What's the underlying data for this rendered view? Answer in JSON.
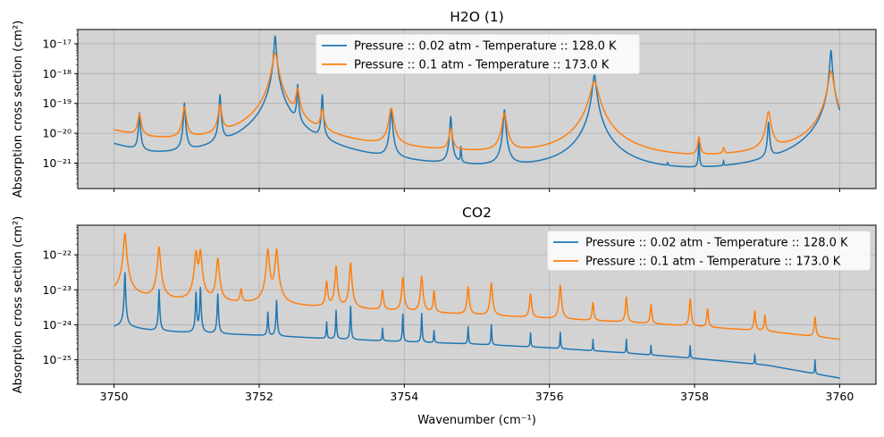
{
  "colors": {
    "series1": "#1f77b4",
    "series2": "#ff7f0e",
    "axes_bg": "#d3d3d3",
    "grid": "#b0b0b0"
  },
  "chart_data": [
    {
      "type": "line",
      "title": "H2O (1)",
      "ylabel": "Absorption cross section (cm²)",
      "xlabel": "",
      "yscale": "log",
      "xlim": [
        3749.5,
        3760.5
      ],
      "ylim": [
        1.4e-22,
        3e-17
      ],
      "grid": true,
      "legend_position": "top-center",
      "x_ticks": [
        3750,
        3752,
        3754,
        3756,
        3758,
        3760
      ],
      "y_ticks": [
        {
          "value": 1e-17,
          "label": "10⁻¹⁷"
        },
        {
          "value": 1e-18,
          "label": "10⁻¹⁸"
        },
        {
          "value": 1e-19,
          "label": "10⁻¹⁹"
        },
        {
          "value": 1e-20,
          "label": "10⁻²⁰"
        },
        {
          "value": 1e-21,
          "label": "10⁻²¹"
        }
      ],
      "series": [
        {
          "name": "Pressure :: 0.02 atm - Temperature :: 128.0 K",
          "x_range": [
            3750,
            3760
          ],
          "baseline": [
            [
              3750,
              4e-21
            ],
            [
              3750.5,
              1.5e-21
            ],
            [
              3751,
              9e-22
            ],
            [
              3752,
              8e-22
            ],
            [
              3753,
              6e-22
            ],
            [
              3754,
              4.5e-22
            ],
            [
              3755,
              3.5e-22
            ],
            [
              3756,
              3e-22
            ],
            [
              3757,
              2.4e-22
            ],
            [
              3758,
              2.2e-22
            ],
            [
              3759,
              3e-22
            ],
            [
              3760,
              5e-22
            ]
          ],
          "peaks": [
            {
              "x": 3750.35,
              "y": 4.5e-20,
              "w": 0.009
            },
            {
              "x": 3750.97,
              "y": 1e-19,
              "w": 0.009
            },
            {
              "x": 3751.46,
              "y": 1.9e-19,
              "w": 0.009
            },
            {
              "x": 3752.22,
              "y": 1.8e-17,
              "w": 0.012
            },
            {
              "x": 3752.53,
              "y": 4e-19,
              "w": 0.008
            },
            {
              "x": 3752.87,
              "y": 1.9e-19,
              "w": 0.008
            },
            {
              "x": 3753.82,
              "y": 6e-20,
              "w": 0.012
            },
            {
              "x": 3754.64,
              "y": 3.5e-20,
              "w": 0.01
            },
            {
              "x": 3754.78,
              "y": 2.5e-21,
              "w": 0.006
            },
            {
              "x": 3755.38,
              "y": 6e-20,
              "w": 0.012
            },
            {
              "x": 3756.62,
              "y": 9e-19,
              "w": 0.02
            },
            {
              "x": 3757.63,
              "y": 2.2e-22,
              "w": 0.004
            },
            {
              "x": 3758.06,
              "y": 4.5e-21,
              "w": 0.006
            },
            {
              "x": 3758.4,
              "y": 4e-22,
              "w": 0.004
            },
            {
              "x": 3759.02,
              "y": 2.2e-20,
              "w": 0.01
            },
            {
              "x": 3759.88,
              "y": 6e-18,
              "w": 0.012
            }
          ]
        },
        {
          "name": "Pressure :: 0.1 atm - Temperature :: 173.0 K",
          "x_range": [
            3750,
            3760
          ],
          "baseline": [
            [
              3750,
              1.2e-20
            ],
            [
              3750.5,
              6e-21
            ],
            [
              3751,
              4e-21
            ],
            [
              3752,
              3.5e-21
            ],
            [
              3753,
              2.6e-21
            ],
            [
              3754,
              2e-21
            ],
            [
              3755,
              1.5e-21
            ],
            [
              3756,
              1.2e-21
            ],
            [
              3757,
              9e-22
            ],
            [
              3758,
              9e-22
            ],
            [
              3759,
              1.4e-21
            ],
            [
              3760,
              2.5e-21
            ]
          ],
          "peaks": [
            {
              "x": 3750.35,
              "y": 3.5e-20,
              "w": 0.02
            },
            {
              "x": 3750.97,
              "y": 7e-20,
              "w": 0.02
            },
            {
              "x": 3751.46,
              "y": 8e-20,
              "w": 0.02
            },
            {
              "x": 3752.22,
              "y": 5e-18,
              "w": 0.03
            },
            {
              "x": 3752.53,
              "y": 2.8e-19,
              "w": 0.02
            },
            {
              "x": 3752.87,
              "y": 5e-20,
              "w": 0.02
            },
            {
              "x": 3753.82,
              "y": 6.5e-20,
              "w": 0.025
            },
            {
              "x": 3754.64,
              "y": 1.2e-20,
              "w": 0.02
            },
            {
              "x": 3755.38,
              "y": 4.5e-20,
              "w": 0.025
            },
            {
              "x": 3756.62,
              "y": 5.5e-19,
              "w": 0.045
            },
            {
              "x": 3758.06,
              "y": 5.5e-21,
              "w": 0.015
            },
            {
              "x": 3758.4,
              "y": 1.2e-21,
              "w": 0.012
            },
            {
              "x": 3759.02,
              "y": 5e-20,
              "w": 0.025
            },
            {
              "x": 3759.88,
              "y": 1.2e-18,
              "w": 0.03
            }
          ]
        }
      ]
    },
    {
      "type": "line",
      "title": "CO2",
      "ylabel": "Absorption cross section (cm²)",
      "xlabel": "Wavenumber (cm⁻¹)",
      "yscale": "log",
      "xlim": [
        3749.5,
        3760.5
      ],
      "ylim": [
        2e-26,
        7e-22
      ],
      "grid": true,
      "legend_position": "top-right",
      "x_ticks": [
        3750,
        3752,
        3754,
        3756,
        3758,
        3760
      ],
      "y_ticks": [
        {
          "value": 1e-22,
          "label": "10⁻²²"
        },
        {
          "value": 1e-23,
          "label": "10⁻²³"
        },
        {
          "value": 1e-24,
          "label": "10⁻²⁴"
        },
        {
          "value": 1e-25,
          "label": "10⁻²⁵"
        }
      ],
      "series": [
        {
          "name": "Pressure :: 0.02 atm - Temperature :: 128.0 K",
          "x_range": [
            3750,
            3760
          ],
          "baseline": [
            [
              3750,
              8.8e-25
            ],
            [
              3750.1,
              9.5e-25
            ],
            [
              3750.5,
              7e-25
            ],
            [
              3751,
              6e-25
            ],
            [
              3752,
              5e-25
            ],
            [
              3753,
              4e-25
            ],
            [
              3754,
              3.3e-25
            ],
            [
              3755,
              2.8e-25
            ],
            [
              3756,
              2.2e-25
            ],
            [
              3757,
              1.6e-25
            ],
            [
              3758,
              1.1e-25
            ],
            [
              3759,
              7e-26
            ],
            [
              3760,
              3e-26
            ]
          ],
          "peaks": [
            {
              "x": 3750.15,
              "y": 3e-23,
              "w": 0.006
            },
            {
              "x": 3750.62,
              "y": 9.5e-24,
              "w": 0.006
            },
            {
              "x": 3751.13,
              "y": 8e-24,
              "w": 0.006
            },
            {
              "x": 3751.19,
              "y": 1.1e-23,
              "w": 0.006
            },
            {
              "x": 3751.43,
              "y": 7e-24,
              "w": 0.006
            },
            {
              "x": 3752.12,
              "y": 1.8e-24,
              "w": 0.006
            },
            {
              "x": 3752.24,
              "y": 4.5e-24,
              "w": 0.006
            },
            {
              "x": 3752.93,
              "y": 8e-25,
              "w": 0.005
            },
            {
              "x": 3753.06,
              "y": 2.2e-24,
              "w": 0.005
            },
            {
              "x": 3753.26,
              "y": 3e-24,
              "w": 0.005
            },
            {
              "x": 3753.7,
              "y": 4.5e-25,
              "w": 0.005
            },
            {
              "x": 3753.98,
              "y": 1.7e-24,
              "w": 0.005
            },
            {
              "x": 3754.24,
              "y": 1.8e-24,
              "w": 0.005
            },
            {
              "x": 3754.41,
              "y": 3.8e-25,
              "w": 0.005
            },
            {
              "x": 3754.88,
              "y": 6e-25,
              "w": 0.005
            },
            {
              "x": 3755.2,
              "y": 7.5e-25,
              "w": 0.005
            },
            {
              "x": 3755.74,
              "y": 3.5e-25,
              "w": 0.005
            },
            {
              "x": 3756.15,
              "y": 4e-25,
              "w": 0.005
            },
            {
              "x": 3756.6,
              "y": 2e-25,
              "w": 0.004
            },
            {
              "x": 3757.06,
              "y": 2.3e-25,
              "w": 0.004
            },
            {
              "x": 3757.4,
              "y": 1.2e-25,
              "w": 0.004
            },
            {
              "x": 3757.94,
              "y": 1.4e-25,
              "w": 0.004
            },
            {
              "x": 3758.83,
              "y": 7e-26,
              "w": 0.004
            },
            {
              "x": 3759.66,
              "y": 6e-26,
              "w": 0.004
            }
          ]
        },
        {
          "name": "Pressure :: 0.1 atm - Temperature :: 173.0 K",
          "x_range": [
            3750,
            3760
          ],
          "baseline": [
            [
              3750,
              9e-24
            ],
            [
              3750.5,
              5.5e-24
            ],
            [
              3751,
              4.5e-24
            ],
            [
              3752,
              3.8e-24
            ],
            [
              3753,
              3e-24
            ],
            [
              3754,
              2.4e-24
            ],
            [
              3755,
              1.9e-24
            ],
            [
              3756,
              1.5e-24
            ],
            [
              3757,
              1.2e-24
            ],
            [
              3758,
              9e-25
            ],
            [
              3759,
              6.5e-25
            ],
            [
              3760,
              3.8e-25
            ]
          ],
          "peaks": [
            {
              "x": 3750.15,
              "y": 4e-22,
              "w": 0.015
            },
            {
              "x": 3750.62,
              "y": 1.6e-22,
              "w": 0.015
            },
            {
              "x": 3751.13,
              "y": 1.2e-22,
              "w": 0.015
            },
            {
              "x": 3751.19,
              "y": 1.3e-22,
              "w": 0.015
            },
            {
              "x": 3751.43,
              "y": 7.5e-23,
              "w": 0.015
            },
            {
              "x": 3751.75,
              "y": 6e-24,
              "w": 0.012
            },
            {
              "x": 3752.12,
              "y": 1.4e-22,
              "w": 0.015
            },
            {
              "x": 3752.24,
              "y": 1.4e-22,
              "w": 0.015
            },
            {
              "x": 3752.93,
              "y": 1.4e-23,
              "w": 0.012
            },
            {
              "x": 3753.06,
              "y": 4.5e-23,
              "w": 0.012
            },
            {
              "x": 3753.26,
              "y": 5.5e-23,
              "w": 0.012
            },
            {
              "x": 3753.7,
              "y": 7e-24,
              "w": 0.012
            },
            {
              "x": 3753.98,
              "y": 2e-23,
              "w": 0.012
            },
            {
              "x": 3754.24,
              "y": 2.2e-23,
              "w": 0.012
            },
            {
              "x": 3754.41,
              "y": 7e-24,
              "w": 0.01
            },
            {
              "x": 3754.88,
              "y": 1e-23,
              "w": 0.012
            },
            {
              "x": 3755.2,
              "y": 1.4e-23,
              "w": 0.012
            },
            {
              "x": 3755.74,
              "y": 6e-24,
              "w": 0.012
            },
            {
              "x": 3756.15,
              "y": 1.2e-23,
              "w": 0.012
            },
            {
              "x": 3756.6,
              "y": 3e-24,
              "w": 0.01
            },
            {
              "x": 3757.06,
              "y": 5e-24,
              "w": 0.01
            },
            {
              "x": 3757.4,
              "y": 2.7e-24,
              "w": 0.01
            },
            {
              "x": 3757.94,
              "y": 4.5e-24,
              "w": 0.01
            },
            {
              "x": 3758.18,
              "y": 2e-24,
              "w": 0.01
            },
            {
              "x": 3758.83,
              "y": 1.8e-24,
              "w": 0.01
            },
            {
              "x": 3758.97,
              "y": 1.2e-24,
              "w": 0.01
            },
            {
              "x": 3759.66,
              "y": 1.2e-24,
              "w": 0.01
            }
          ]
        }
      ]
    }
  ]
}
